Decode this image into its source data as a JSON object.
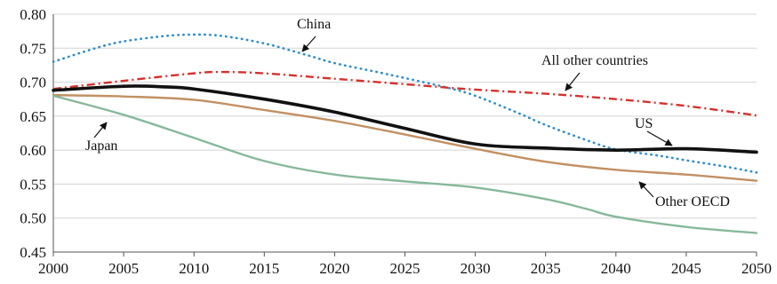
{
  "chart_data": {
    "type": "line",
    "title": "",
    "xlabel": "",
    "ylabel": "",
    "xlim": [
      2000,
      2050
    ],
    "ylim": [
      0.45,
      0.8
    ],
    "grid": "horizontal",
    "x_ticks": [
      "2000",
      "2005",
      "2010",
      "2015",
      "2020",
      "2025",
      "2030",
      "2035",
      "2040",
      "2045",
      "2050"
    ],
    "y_ticks": [
      "0.45",
      "0.50",
      "0.55",
      "0.60",
      "0.65",
      "0.70",
      "0.75",
      "0.80"
    ],
    "series": [
      {
        "name": "China",
        "color": "#2e8fc9",
        "style": "dotted",
        "x": [
          2000,
          2003,
          2005,
          2008,
          2010,
          2012,
          2015,
          2018,
          2020,
          2023,
          2025,
          2028,
          2030,
          2033,
          2035,
          2038,
          2040,
          2043,
          2045,
          2048,
          2050
        ],
        "y": [
          0.73,
          0.75,
          0.76,
          0.768,
          0.77,
          0.768,
          0.757,
          0.74,
          0.728,
          0.715,
          0.706,
          0.692,
          0.68,
          0.655,
          0.637,
          0.614,
          0.601,
          0.592,
          0.585,
          0.575,
          0.567
        ]
      },
      {
        "name": "All other countries",
        "color": "#d6312c",
        "style": "dash-dot",
        "x": [
          2000,
          2005,
          2010,
          2012,
          2015,
          2020,
          2025,
          2030,
          2035,
          2040,
          2045,
          2050
        ],
        "y": [
          0.69,
          0.702,
          0.713,
          0.715,
          0.713,
          0.705,
          0.697,
          0.689,
          0.683,
          0.675,
          0.665,
          0.651
        ]
      },
      {
        "name": "US",
        "color": "#111111",
        "style": "solid",
        "x": [
          2000,
          2005,
          2008,
          2010,
          2015,
          2020,
          2025,
          2030,
          2035,
          2040,
          2045,
          2050
        ],
        "y": [
          0.688,
          0.694,
          0.693,
          0.69,
          0.675,
          0.656,
          0.632,
          0.609,
          0.603,
          0.6,
          0.602,
          0.597
        ]
      },
      {
        "name": "Other OECD",
        "color": "#c29063",
        "style": "solid",
        "x": [
          2000,
          2005,
          2010,
          2015,
          2020,
          2025,
          2030,
          2035,
          2040,
          2045,
          2050
        ],
        "y": [
          0.681,
          0.679,
          0.674,
          0.659,
          0.643,
          0.623,
          0.602,
          0.583,
          0.571,
          0.564,
          0.555
        ]
      },
      {
        "name": "Japan",
        "color": "#86b99b",
        "style": "solid",
        "x": [
          2000,
          2005,
          2010,
          2015,
          2020,
          2025,
          2030,
          2035,
          2038,
          2040,
          2045,
          2050
        ],
        "y": [
          0.68,
          0.652,
          0.618,
          0.584,
          0.564,
          0.554,
          0.545,
          0.528,
          0.513,
          0.502,
          0.487,
          0.478
        ]
      }
    ],
    "annotations": [
      {
        "text": "China",
        "series": "China"
      },
      {
        "text": "All other countries",
        "series": "All other countries"
      },
      {
        "text": "US",
        "series": "US"
      },
      {
        "text": "Japan",
        "series": "Japan"
      },
      {
        "text": "Other OECD",
        "series": "Other OECD"
      }
    ]
  }
}
